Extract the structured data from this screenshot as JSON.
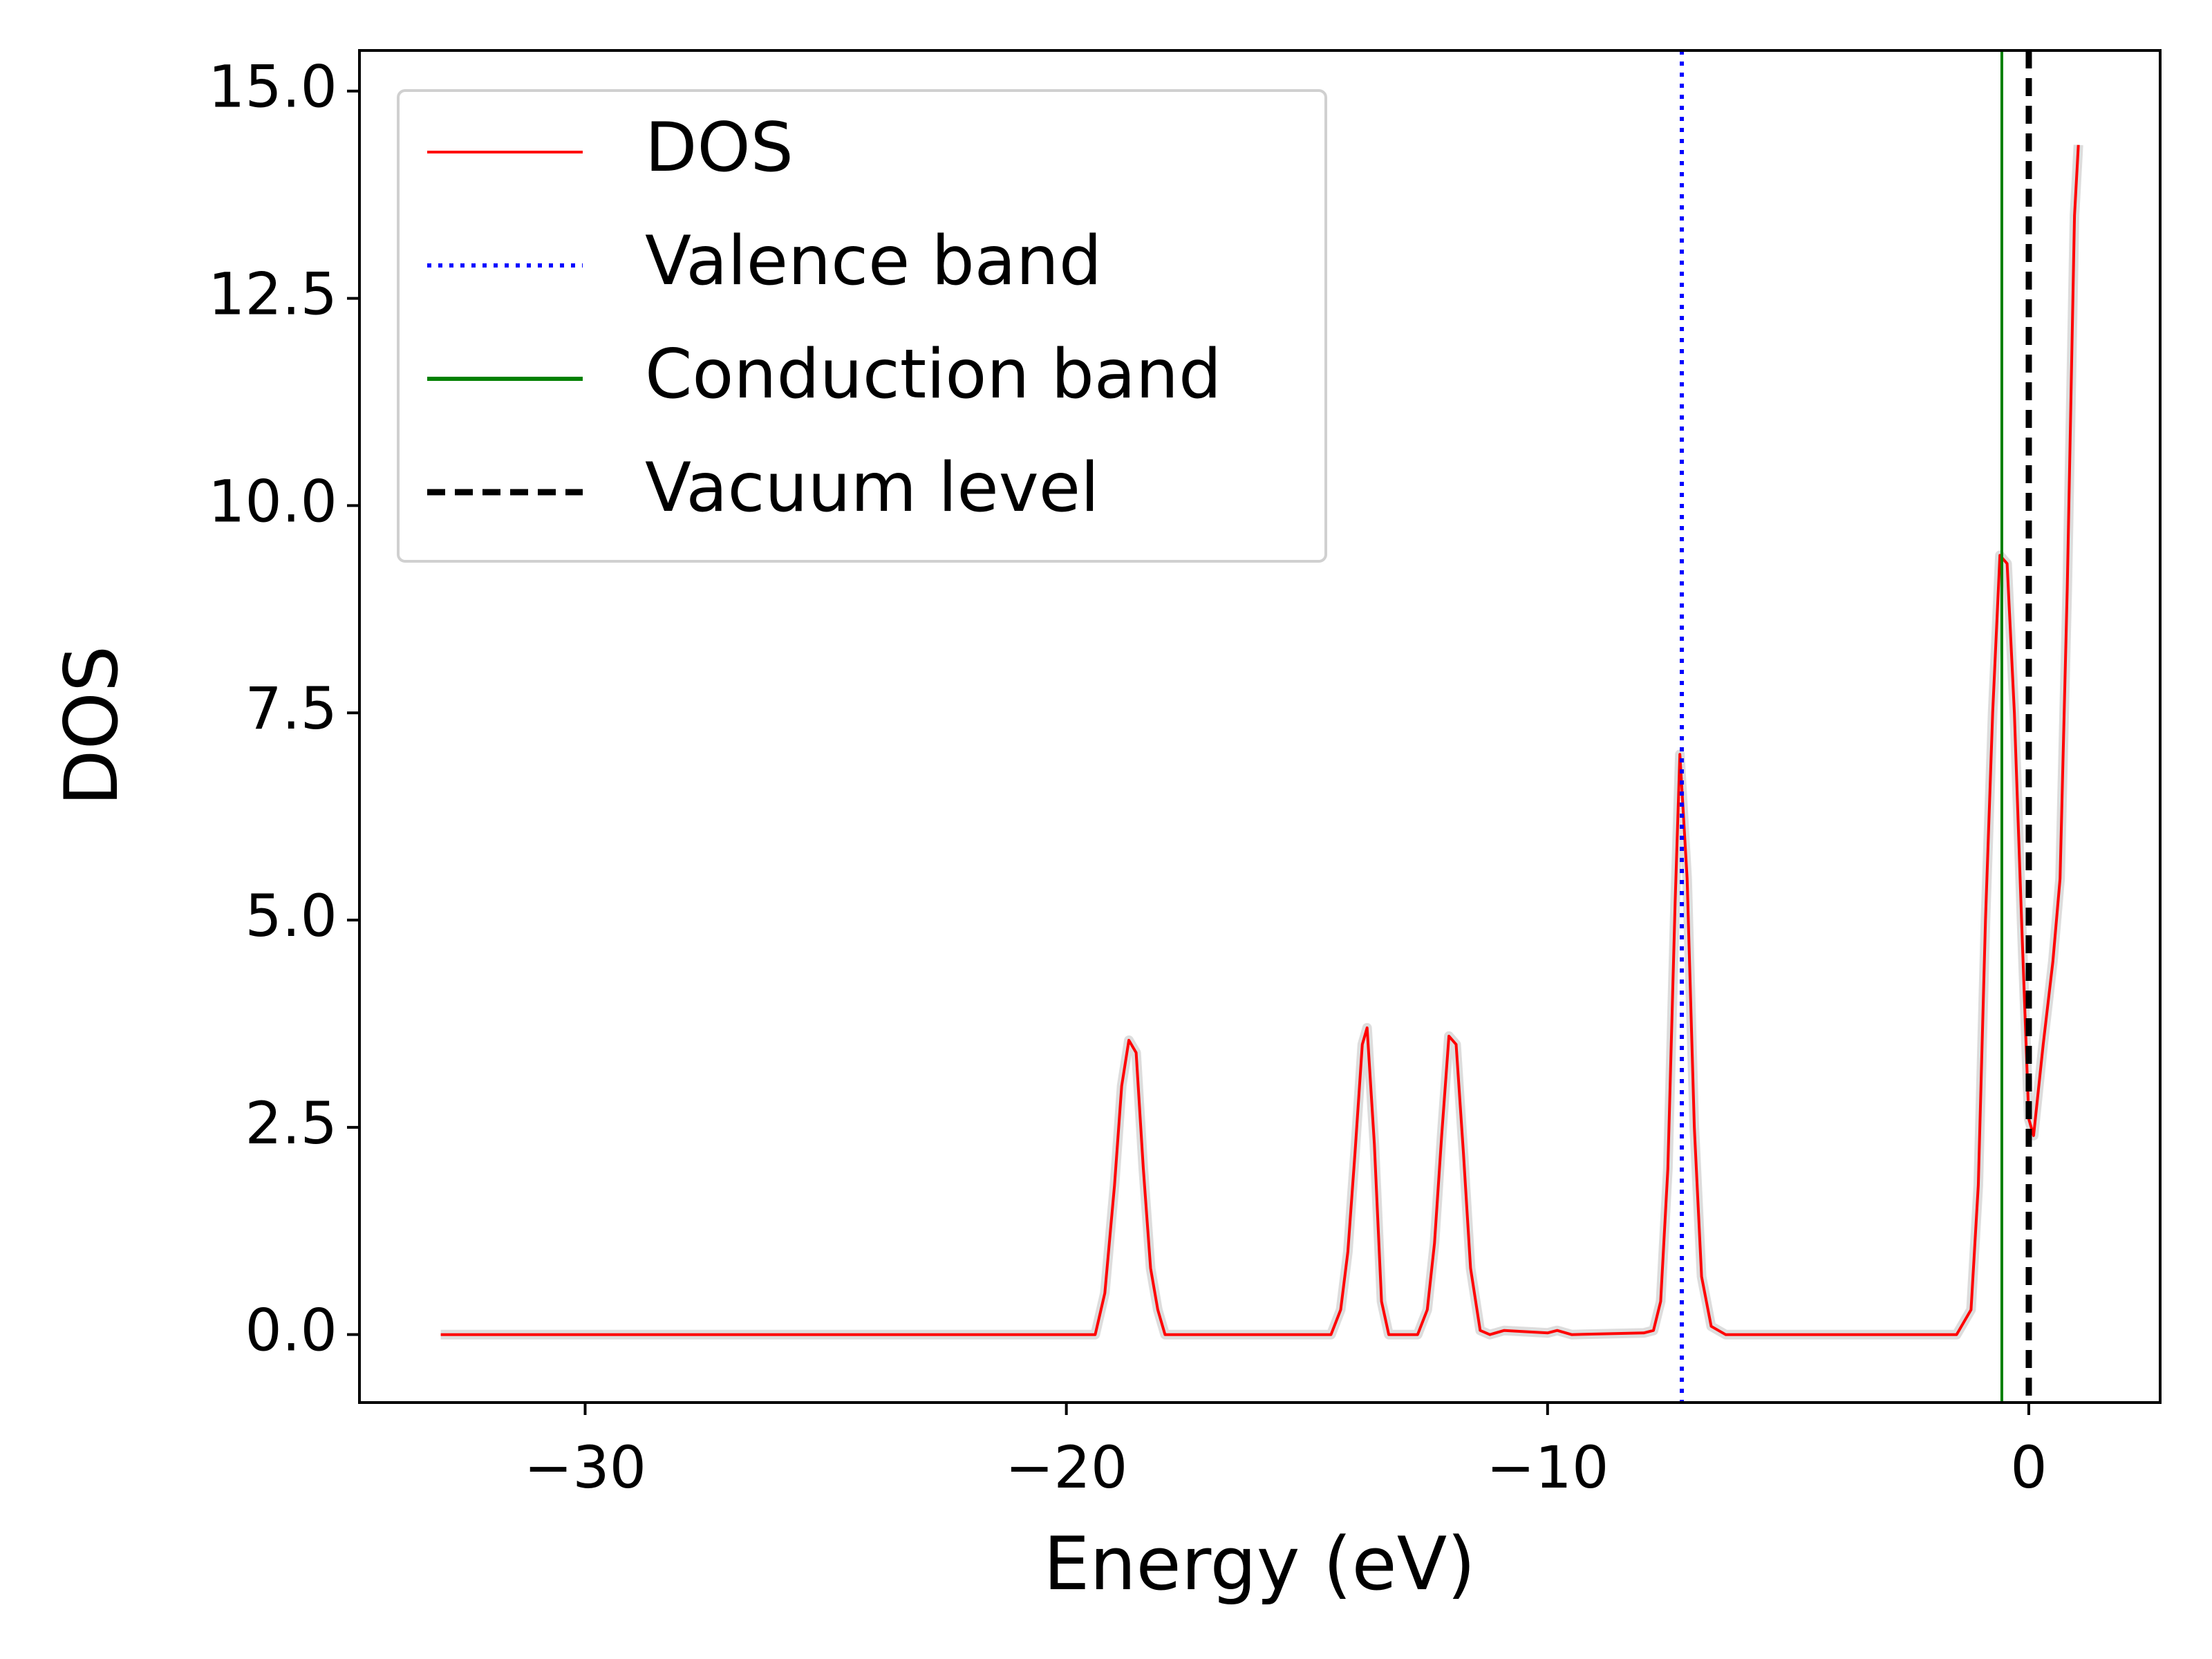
{
  "chart_data": {
    "type": "line",
    "xlabel": "Energy (eV)",
    "ylabel": "DOS",
    "x": [
      -33,
      -21,
      -19.4,
      -19.2,
      -19.0,
      -18.85,
      -18.7,
      -18.55,
      -18.4,
      -18.25,
      -18.1,
      -17.95,
      -14.5,
      -14.3,
      -14.15,
      -14.0,
      -13.85,
      -13.75,
      -13.6,
      -13.45,
      -13.3,
      -12.7,
      -12.5,
      -12.35,
      -12.2,
      -12.05,
      -11.9,
      -11.75,
      -11.6,
      -11.4,
      -11.2,
      -10.9,
      -10.0,
      -9.8,
      -9.5,
      -8.0,
      -7.8,
      -7.65,
      -7.5,
      -7.35,
      -7.25,
      -7.1,
      -6.95,
      -6.8,
      -6.6,
      -6.3,
      -1.5,
      -1.2,
      -1.05,
      -0.9,
      -0.75,
      -0.6,
      -0.45,
      -0.3,
      -0.15,
      0.0,
      0.1,
      0.3,
      0.5,
      0.65,
      0.8,
      0.95,
      1.03
    ],
    "series": [
      {
        "name": "DOS",
        "color": "#ff0000",
        "values": [
          0,
          0,
          0,
          0.5,
          1.8,
          3.0,
          3.55,
          3.4,
          2.0,
          0.8,
          0.3,
          0,
          0,
          0.3,
          1.0,
          2.2,
          3.5,
          3.7,
          2.3,
          0.4,
          0,
          0,
          0.3,
          1.1,
          2.4,
          3.6,
          3.5,
          2.2,
          0.8,
          0.05,
          0,
          0.05,
          0.02,
          0.05,
          0,
          0.02,
          0.05,
          0.4,
          2.0,
          5.2,
          7.0,
          5.5,
          2.5,
          0.7,
          0.1,
          0,
          0,
          0.3,
          1.8,
          5.0,
          7.5,
          9.4,
          9.3,
          7.5,
          5.0,
          2.6,
          2.4,
          3.5,
          4.5,
          5.5,
          9.0,
          13.5,
          14.35
        ]
      }
    ],
    "vlines": [
      {
        "name": "Valence band",
        "x": -7.21,
        "color": "#0000ff",
        "style": "dotted"
      },
      {
        "name": "Conduction band",
        "x": -0.56,
        "color": "#008000",
        "style": "solid"
      },
      {
        "name": "Vacuum level",
        "x": 0,
        "color": "#000000",
        "style": "dashed"
      }
    ],
    "xlim": [
      -34.69,
      2.73
    ],
    "ylim": [
      -0.82,
      15.49
    ],
    "xticks": [
      {
        "value": -30,
        "label": "−30"
      },
      {
        "value": -20,
        "label": "−20"
      },
      {
        "value": -10,
        "label": "−10"
      },
      0
    ],
    "yticks": [
      {
        "value": 0,
        "label": "0.0"
      },
      2.5,
      {
        "value": 5,
        "label": "5.0"
      },
      7.5,
      {
        "value": 10,
        "label": "10.0"
      },
      12.5,
      {
        "value": 15,
        "label": "15.0"
      }
    ],
    "legend": "upper left"
  }
}
